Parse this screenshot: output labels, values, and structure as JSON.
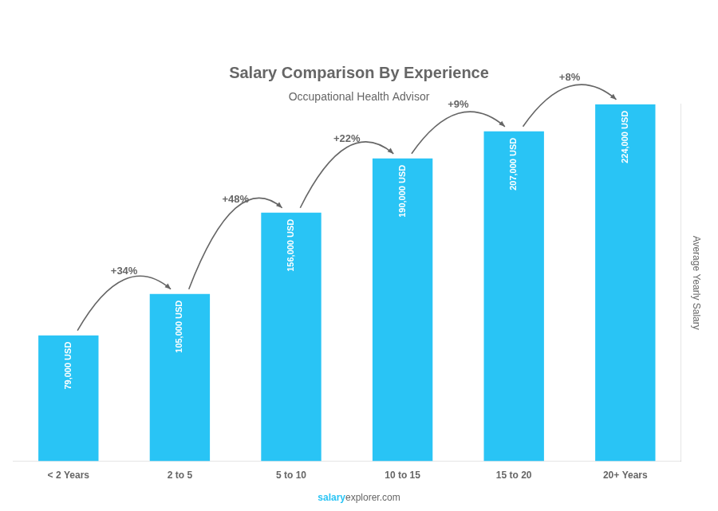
{
  "chart_data": {
    "type": "bar",
    "title": "Salary Comparison By Experience",
    "subtitle": "Occupational Health Advisor",
    "categories": [
      "< 2 Years",
      "2 to 5",
      "5 to 10",
      "10 to 15",
      "15 to 20",
      "20+ Years"
    ],
    "values": [
      79000,
      105000,
      156000,
      190000,
      207000,
      224000
    ],
    "value_labels": [
      "79,000 USD",
      "105,000 USD",
      "156,000 USD",
      "190,000 USD",
      "207,000 USD",
      "224,000 USD"
    ],
    "data_labels": true,
    "color": "#29c4f5",
    "ylabel": "Average Yearly Salary",
    "ylim": [
      0,
      224000
    ],
    "tick_labels": "x",
    "grid": false,
    "annotations": {
      "changes": [
        "+34%",
        "+48%",
        "+22%",
        "+9%",
        "+8%"
      ],
      "footer": [
        "salary",
        "explorer.com"
      ]
    }
  }
}
